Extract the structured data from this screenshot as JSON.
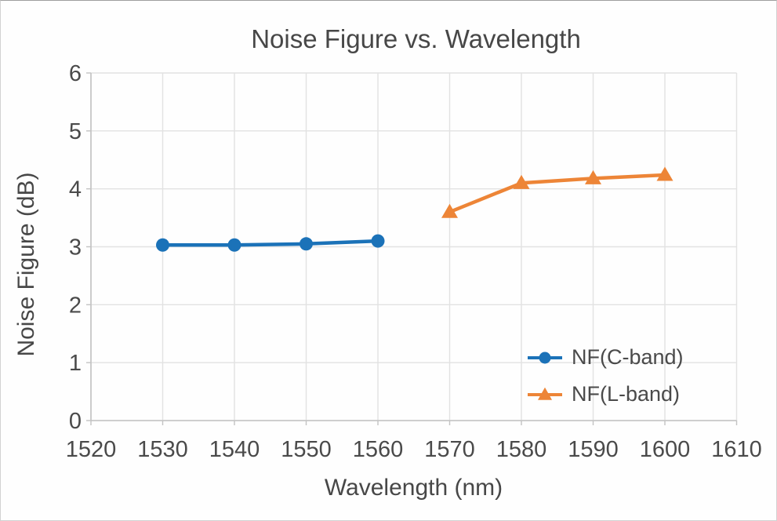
{
  "chart_data": {
    "type": "line",
    "title": "Noise Figure vs. Wavelength",
    "xlabel": "Wavelength (nm)",
    "ylabel": "Noise Figure (dB)",
    "xlim": [
      1520,
      1610
    ],
    "ylim": [
      0,
      6
    ],
    "x_ticks": [
      1520,
      1530,
      1540,
      1550,
      1560,
      1570,
      1580,
      1590,
      1600,
      1610
    ],
    "y_ticks": [
      0,
      1,
      2,
      3,
      4,
      5,
      6
    ],
    "grid": true,
    "legend_position": "inside-bottom-right",
    "series": [
      {
        "name": "NF(C-band)",
        "marker": "circle",
        "color": "#1b72b8",
        "x": [
          1530,
          1540,
          1550,
          1560
        ],
        "y": [
          3.03,
          3.03,
          3.05,
          3.1
        ]
      },
      {
        "name": "NF(L-band)",
        "marker": "triangle",
        "color": "#ed8537",
        "x": [
          1570,
          1580,
          1590,
          1600
        ],
        "y": [
          3.6,
          4.1,
          4.18,
          4.24
        ]
      }
    ],
    "colors": {
      "text": "#4a4a4a",
      "grid": "#e2e2e2",
      "axis": "#c3c3c3",
      "background": "#fefefe"
    }
  }
}
